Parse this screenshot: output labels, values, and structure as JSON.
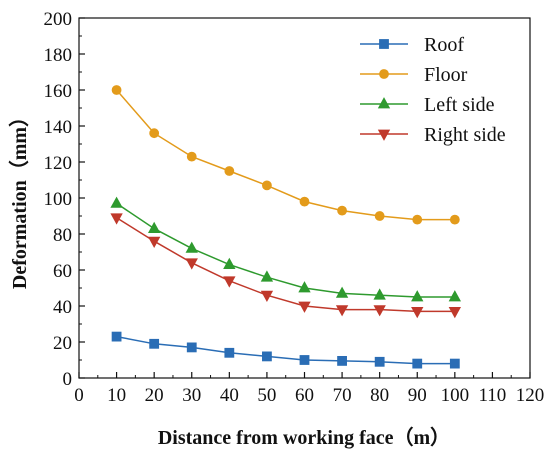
{
  "chart_data": {
    "type": "line",
    "xlabel": "Distance from working face（m）",
    "ylabel": "Deformation（mm）",
    "xlim": [
      0,
      120
    ],
    "ylim": [
      0,
      200
    ],
    "xticks": [
      0,
      10,
      20,
      30,
      40,
      50,
      60,
      70,
      80,
      90,
      100,
      110,
      120
    ],
    "yticks": [
      0,
      20,
      40,
      60,
      80,
      100,
      120,
      140,
      160,
      180,
      200
    ],
    "grid": false,
    "legend_position": "top-right",
    "x": [
      10,
      20,
      30,
      40,
      50,
      60,
      70,
      80,
      90,
      100
    ],
    "series": [
      {
        "name": "Roof",
        "color": "#2a6db5",
        "marker": "square",
        "values": [
          23,
          19,
          17,
          14,
          12,
          10,
          9.5,
          9,
          8,
          8
        ]
      },
      {
        "name": "Floor",
        "color": "#e39b1b",
        "marker": "circle",
        "values": [
          160,
          136,
          123,
          115,
          107,
          98,
          93,
          90,
          88,
          88
        ]
      },
      {
        "name": "Left side",
        "color": "#2e9a2e",
        "marker": "triangle-up",
        "values": [
          97,
          83,
          72,
          63,
          56,
          50,
          47,
          46,
          45,
          45
        ]
      },
      {
        "name": "Right side",
        "color": "#c0392b",
        "marker": "triangle-down",
        "values": [
          89,
          76,
          64,
          54,
          46,
          40,
          38,
          38,
          37,
          37
        ]
      }
    ]
  }
}
